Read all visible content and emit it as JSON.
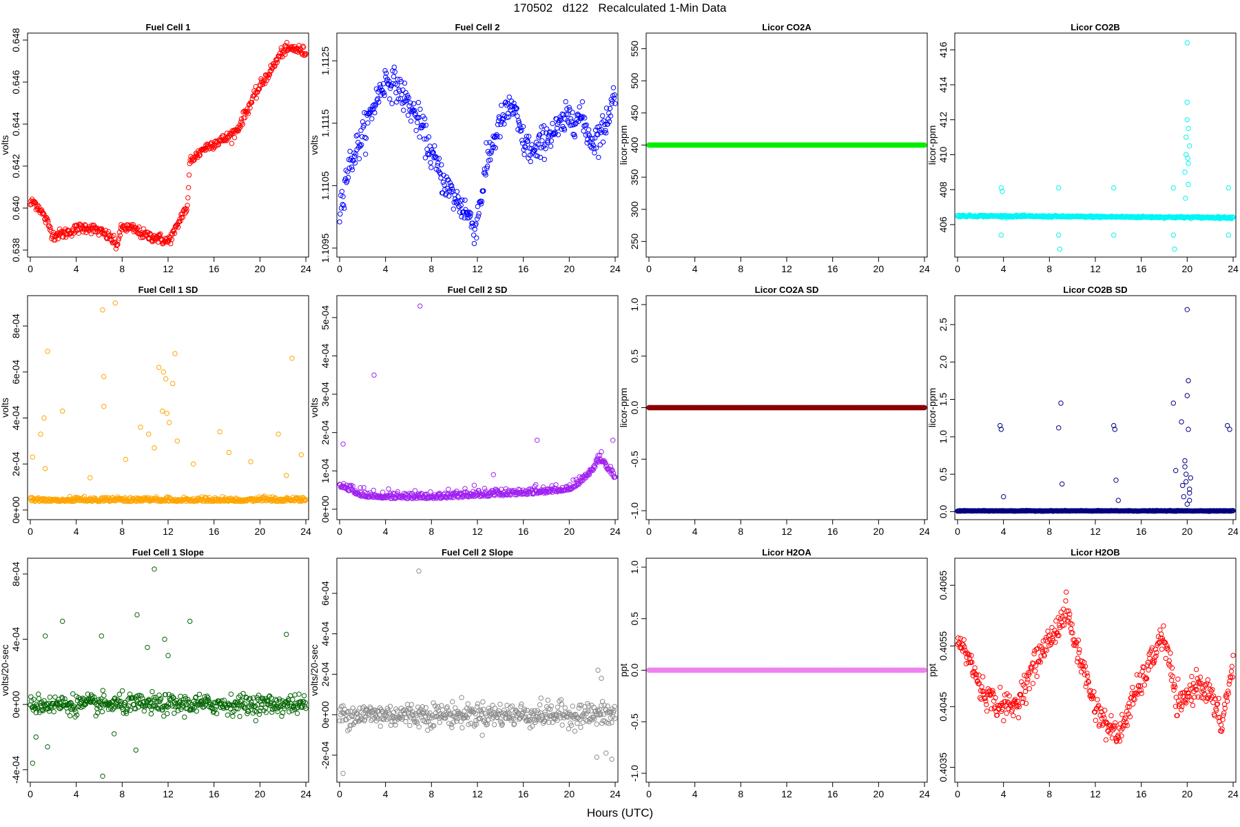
{
  "figure": {
    "title": "170502   d122   Recalculated 1-Min Data",
    "xlabel": "Hours (UTC)"
  },
  "chart_data": [
    {
      "type": "scatter",
      "title": "Fuel Cell 1",
      "ylabel": "volts",
      "color": "#ff0000",
      "xlim": [
        0,
        24
      ],
      "ylim": [
        0.6378,
        0.6482
      ],
      "xticks": [
        0,
        4,
        8,
        12,
        16,
        20,
        24
      ],
      "yticks": [
        0.638,
        0.64,
        0.642,
        0.644,
        0.646,
        0.648
      ],
      "ytick_labels": [
        "0.638",
        "0.640",
        "0.642",
        "0.644",
        "0.646",
        "0.648"
      ],
      "curve": {
        "x": [
          0,
          0.3,
          0.8,
          1.5,
          2,
          3,
          4,
          5,
          6,
          7,
          7.5,
          8,
          9,
          10,
          11,
          12,
          12.7,
          13.3,
          13.7,
          13.9,
          14.5,
          15,
          16,
          17,
          18,
          19,
          20,
          21,
          22,
          23,
          24
        ],
        "y": [
          0.6402,
          0.6403,
          0.64,
          0.6393,
          0.6387,
          0.6388,
          0.639,
          0.6391,
          0.6389,
          0.6386,
          0.6382,
          0.6391,
          0.639,
          0.6387,
          0.6386,
          0.6384,
          0.639,
          0.6398,
          0.64,
          0.6423,
          0.6425,
          0.6428,
          0.6431,
          0.6433,
          0.6437,
          0.6448,
          0.6458,
          0.6466,
          0.6475,
          0.6476,
          0.6474
        ]
      },
      "noise": 0.00025,
      "outliers": []
    },
    {
      "type": "scatter",
      "title": "Fuel Cell 2",
      "ylabel": "volts",
      "color": "#0000ff",
      "xlim": [
        0,
        24
      ],
      "ylim": [
        1.1094,
        1.1129
      ],
      "xticks": [
        0,
        4,
        8,
        12,
        16,
        20,
        24
      ],
      "yticks": [
        1.1095,
        1.1105,
        1.1115,
        1.1125
      ],
      "ytick_labels": [
        "1.1095",
        "1.1105",
        "1.1115",
        "1.1125"
      ],
      "curve": {
        "x": [
          0,
          0.5,
          1,
          2,
          3,
          4,
          5,
          6,
          7,
          8,
          9,
          10,
          11,
          11.8,
          12.5,
          13,
          14,
          15,
          16,
          17,
          18,
          19,
          20,
          21,
          22,
          23,
          24
        ],
        "y": [
          1.1101,
          1.1106,
          1.1109,
          1.1113,
          1.1118,
          1.1122,
          1.1121,
          1.1118,
          1.1115,
          1.111,
          1.1106,
          1.1103,
          1.1101,
          1.1098,
          1.1105,
          1.111,
          1.1115,
          1.1118,
          1.1112,
          1.111,
          1.1113,
          1.1114,
          1.1116,
          1.1116,
          1.1112,
          1.1114,
          1.112
        ]
      },
      "noise": 0.00025,
      "outliers": []
    },
    {
      "type": "scatter",
      "title": "Licor CO2A",
      "ylabel": "licor-ppm",
      "color": "#00ee00",
      "xlim": [
        0,
        24
      ],
      "ylim": [
        230,
        570
      ],
      "xticks": [
        0,
        4,
        8,
        12,
        16,
        20,
        24
      ],
      "yticks": [
        250,
        300,
        350,
        400,
        450,
        500,
        550
      ],
      "ytick_labels": [
        "250",
        "300",
        "350",
        "400",
        "450",
        "500",
        "550"
      ],
      "curve": {
        "x": [
          0,
          24
        ],
        "y": [
          400,
          400
        ]
      },
      "noise": 0,
      "outliers": []
    },
    {
      "type": "scatter",
      "title": "Licor CO2B",
      "ylabel": "licor-ppm",
      "color": "#00f5f5",
      "xlim": [
        0,
        24
      ],
      "ylim": [
        404.3,
        416.8
      ],
      "xticks": [
        0,
        4,
        8,
        12,
        16,
        20,
        24
      ],
      "yticks": [
        406,
        408,
        410,
        412,
        414,
        416
      ],
      "ytick_labels": [
        "406",
        "408",
        "410",
        "412",
        "414",
        "416"
      ],
      "curve": {
        "x": [
          0,
          24
        ],
        "y": [
          406.5,
          406.4
        ]
      },
      "noise": 0.05,
      "outliers": [
        [
          3.8,
          408.1
        ],
        [
          3.8,
          405.4
        ],
        [
          3.9,
          407.9
        ],
        [
          8.8,
          408.1
        ],
        [
          8.8,
          405.4
        ],
        [
          8.9,
          404.6
        ],
        [
          13.6,
          408.1
        ],
        [
          13.6,
          405.4
        ],
        [
          18.8,
          408.1
        ],
        [
          18.8,
          405.4
        ],
        [
          18.9,
          404.6
        ],
        [
          23.6,
          408.1
        ],
        [
          23.6,
          405.4
        ],
        [
          19.8,
          409.0
        ],
        [
          19.9,
          410.0
        ],
        [
          19.9,
          411.0
        ],
        [
          20.0,
          412.0
        ],
        [
          20.0,
          413.0
        ],
        [
          20.0,
          416.4
        ],
        [
          20.1,
          409.5
        ],
        [
          20.1,
          408.3
        ],
        [
          20.2,
          410.5
        ],
        [
          19.85,
          407.5
        ],
        [
          20.05,
          409.8
        ],
        [
          20.1,
          411.5
        ]
      ]
    },
    {
      "type": "scatter",
      "title": "Fuel Cell 1 SD",
      "ylabel": "volts",
      "color": "#ffa500",
      "xlim": [
        0,
        24
      ],
      "ylim": [
        -3e-05,
        0.00092
      ],
      "xticks": [
        0,
        4,
        8,
        12,
        16,
        20,
        24
      ],
      "yticks": [
        0,
        0.0002,
        0.0004,
        0.0006,
        0.0008
      ],
      "ytick_labels": [
        "0e+00",
        "2e-04",
        "4e-04",
        "6e-04",
        "8e-04"
      ],
      "curve": {
        "x": [
          0,
          24
        ],
        "y": [
          4e-05,
          4e-05
        ]
      },
      "noise": 2e-05,
      "outliers": [
        [
          6.3,
          0.00087
        ],
        [
          7.4,
          0.0009
        ],
        [
          1.5,
          0.00069
        ],
        [
          6.4,
          0.00058
        ],
        [
          11.2,
          0.00062
        ],
        [
          11.6,
          0.0006
        ],
        [
          12.6,
          0.00068
        ],
        [
          12.4,
          0.00055
        ],
        [
          11.8,
          0.00057
        ],
        [
          22.8,
          0.00066
        ],
        [
          0.9,
          0.00033
        ],
        [
          1.2,
          0.0004
        ],
        [
          2.8,
          0.00043
        ],
        [
          6.4,
          0.00045
        ],
        [
          9.6,
          0.00036
        ],
        [
          10.3,
          0.00033
        ],
        [
          11.5,
          0.00043
        ],
        [
          11.9,
          0.00042
        ],
        [
          12.1,
          0.00038
        ],
        [
          16.5,
          0.00034
        ],
        [
          21.6,
          0.00033
        ],
        [
          23.6,
          0.00024
        ],
        [
          0.2,
          0.00023
        ],
        [
          1.3,
          0.00018
        ],
        [
          5.2,
          0.00014
        ],
        [
          8.3,
          0.00022
        ],
        [
          10.8,
          0.00027
        ],
        [
          12.8,
          0.0003
        ],
        [
          14.2,
          0.0002
        ],
        [
          17.3,
          0.00025
        ],
        [
          19.2,
          0.00021
        ],
        [
          22.3,
          0.00015
        ]
      ]
    },
    {
      "type": "scatter",
      "title": "Fuel Cell 2 SD",
      "ylabel": "volts",
      "color": "#a020f0",
      "xlim": [
        0,
        24
      ],
      "ylim": [
        -2e-05,
        0.00055
      ],
      "xticks": [
        0,
        4,
        8,
        12,
        16,
        20,
        24
      ],
      "yticks": [
        0,
        0.0001,
        0.0002,
        0.0003,
        0.0004,
        0.0005
      ],
      "ytick_labels": [
        "0e+00",
        "1e-04",
        "2e-04",
        "3e-04",
        "4e-04",
        "5e-04"
      ],
      "curve": {
        "x": [
          0,
          2,
          4,
          8,
          12,
          16,
          20,
          21,
          22,
          22.7,
          23.5,
          24
        ],
        "y": [
          6e-05,
          3.5e-05,
          3e-05,
          3e-05,
          3.5e-05,
          4e-05,
          5e-05,
          7e-05,
          0.0001,
          0.00013,
          0.0001,
          8e-05
        ]
      },
      "noise": 1.8e-05,
      "outliers": [
        [
          7.0,
          0.00053
        ],
        [
          3.0,
          0.00035
        ],
        [
          0.3,
          0.00017
        ],
        [
          17.2,
          0.00018
        ],
        [
          23.8,
          0.00018
        ],
        [
          22.8,
          0.00015
        ],
        [
          22.5,
          0.00014
        ],
        [
          13.4,
          9e-05
        ]
      ]
    },
    {
      "type": "scatter",
      "title": "Licor CO2A SD",
      "ylabel": "licor-ppm",
      "color": "#8b0000",
      "xlim": [
        0,
        24
      ],
      "ylim": [
        -1.06,
        1.06
      ],
      "xticks": [
        0,
        4,
        8,
        12,
        16,
        20,
        24
      ],
      "yticks": [
        -1.0,
        -0.5,
        0.0,
        0.5,
        1.0
      ],
      "ytick_labels": [
        "-1.0",
        "-0.5",
        "0.0",
        "0.5",
        "1.0"
      ],
      "curve": {
        "x": [
          0,
          24
        ],
        "y": [
          0,
          0
        ]
      },
      "noise": 0,
      "outliers": []
    },
    {
      "type": "scatter",
      "title": "Licor CO2B SD",
      "ylabel": "licor-ppm",
      "color": "#000080",
      "xlim": [
        0,
        24
      ],
      "ylim": [
        -0.07,
        2.85
      ],
      "xticks": [
        0,
        4,
        8,
        12,
        16,
        20,
        24
      ],
      "yticks": [
        0.0,
        0.5,
        1.0,
        1.5,
        2.0,
        2.5
      ],
      "ytick_labels": [
        "0.0",
        "0.5",
        "1.0",
        "1.5",
        "2.0",
        "2.5"
      ],
      "curve": {
        "x": [
          0,
          24
        ],
        "y": [
          0.01,
          0.01
        ]
      },
      "noise": 0.004,
      "outliers": [
        [
          3.7,
          1.15
        ],
        [
          3.8,
          1.1
        ],
        [
          4.0,
          0.2
        ],
        [
          8.8,
          1.12
        ],
        [
          9.0,
          1.45
        ],
        [
          9.1,
          0.37
        ],
        [
          13.6,
          1.15
        ],
        [
          13.7,
          1.1
        ],
        [
          13.8,
          0.42
        ],
        [
          14.0,
          0.15
        ],
        [
          18.8,
          1.45
        ],
        [
          19.0,
          0.55
        ],
        [
          19.5,
          1.2
        ],
        [
          19.6,
          0.35
        ],
        [
          19.8,
          0.6
        ],
        [
          19.8,
          0.68
        ],
        [
          19.9,
          0.5
        ],
        [
          19.9,
          0.4
        ],
        [
          20.0,
          2.7
        ],
        [
          20.0,
          1.55
        ],
        [
          20.1,
          1.75
        ],
        [
          20.1,
          1.1
        ],
        [
          20.2,
          0.3
        ],
        [
          20.2,
          0.25
        ],
        [
          20.3,
          0.45
        ],
        [
          20.2,
          0.15
        ],
        [
          23.5,
          1.15
        ],
        [
          23.7,
          1.1
        ],
        [
          19.7,
          0.2
        ],
        [
          20.0,
          0.1
        ]
      ]
    },
    {
      "type": "scatter",
      "title": "Fuel Cell 1 Slope",
      "ylabel": "volts/20-sec",
      "color": "#006400",
      "xlim": [
        0,
        24
      ],
      "ylim": [
        -0.00046,
        0.00088
      ],
      "xticks": [
        0,
        4,
        8,
        12,
        16,
        20,
        24
      ],
      "yticks": [
        -0.0004,
        0,
        0.0004,
        0.0008
      ],
      "ytick_labels": [
        "-4e-04",
        "0e+00",
        "4e-04",
        "8e-04"
      ],
      "curve": {
        "x": [
          0,
          24
        ],
        "y": [
          0,
          0
        ]
      },
      "noise": 6e-05,
      "outliers": [
        [
          10.8,
          0.00083
        ],
        [
          9.3,
          0.00055
        ],
        [
          2.8,
          0.00051
        ],
        [
          13.9,
          0.00051
        ],
        [
          1.3,
          0.00042
        ],
        [
          6.2,
          0.00042
        ],
        [
          22.3,
          0.00043
        ],
        [
          6.3,
          -0.00044
        ],
        [
          0.2,
          -0.00036
        ],
        [
          1.5,
          -0.00026
        ],
        [
          7.3,
          -0.00018
        ],
        [
          9.2,
          -0.00028
        ],
        [
          0.5,
          -0.0002
        ],
        [
          11.7,
          0.0004
        ],
        [
          10.2,
          0.00035
        ],
        [
          12.0,
          0.0003
        ]
      ]
    },
    {
      "type": "scatter",
      "title": "Fuel Cell 2 Slope",
      "ylabel": "volts/20-sec",
      "color": "#8c8c8c",
      "xlim": [
        0,
        24
      ],
      "ylim": [
        -0.00032,
        0.00076
      ],
      "xticks": [
        0,
        4,
        8,
        12,
        16,
        20,
        24
      ],
      "yticks": [
        -0.0002,
        0,
        0.0002,
        0.0004,
        0.0006
      ],
      "ytick_labels": [
        "-2e-04",
        "0e+00",
        "2e-04",
        "4e-04",
        "6e-04"
      ],
      "curve": {
        "x": [
          0,
          20,
          22,
          24
        ],
        "y": [
          0,
          0,
          0,
          0
        ]
      },
      "noise": 6e-05,
      "outliers": [
        [
          6.9,
          0.00071
        ],
        [
          0.3,
          -0.00029
        ],
        [
          22.5,
          0.00022
        ],
        [
          23.7,
          -0.00022
        ],
        [
          22.4,
          -0.00021
        ],
        [
          22.8,
          0.00018
        ],
        [
          23.2,
          -0.00019
        ]
      ]
    },
    {
      "type": "scatter",
      "title": "Licor H2OA",
      "ylabel": "ppt",
      "color": "#ee82ee",
      "xlim": [
        0,
        24
      ],
      "ylim": [
        -1.06,
        1.06
      ],
      "xticks": [
        0,
        4,
        8,
        12,
        16,
        20,
        24
      ],
      "yticks": [
        -1.0,
        -0.5,
        0.0,
        0.5,
        1.0
      ],
      "ytick_labels": [
        "-1.0",
        "-0.5",
        "0.0",
        "0.5",
        "1.0"
      ],
      "curve": {
        "x": [
          0,
          24
        ],
        "y": [
          0,
          0
        ]
      },
      "noise": 0,
      "outliers": []
    },
    {
      "type": "scatter",
      "title": "Licor H2OB",
      "ylabel": "ppt",
      "color": "#ff0000",
      "xlim": [
        0,
        24
      ],
      "ylim": [
        0.4033,
        0.4069
      ],
      "xticks": [
        0,
        4,
        8,
        12,
        16,
        20,
        24
      ],
      "yticks": [
        0.4035,
        0.4045,
        0.4055,
        0.4065
      ],
      "ytick_labels": [
        "0.4035",
        "0.4045",
        "0.4055",
        "0.4065"
      ],
      "curve": {
        "x": [
          0,
          1,
          2,
          3,
          4,
          5,
          6,
          7,
          8,
          9,
          9.5,
          10,
          11,
          12,
          13,
          14,
          15,
          16,
          17,
          17.8,
          18.5,
          19,
          19.5,
          20,
          21,
          22,
          23,
          24
        ],
        "y": [
          0.4056,
          0.4053,
          0.4048,
          0.4046,
          0.4045,
          0.4045,
          0.4049,
          0.4053,
          0.4056,
          0.4059,
          0.4061,
          0.4057,
          0.4051,
          0.4045,
          0.4042,
          0.404,
          0.4045,
          0.4049,
          0.4053,
          0.4057,
          0.4052,
          0.4046,
          0.4045,
          0.4047,
          0.4049,
          0.4047,
          0.4042,
          0.4052
        ]
      },
      "noise": 0.00022,
      "outliers": []
    }
  ]
}
